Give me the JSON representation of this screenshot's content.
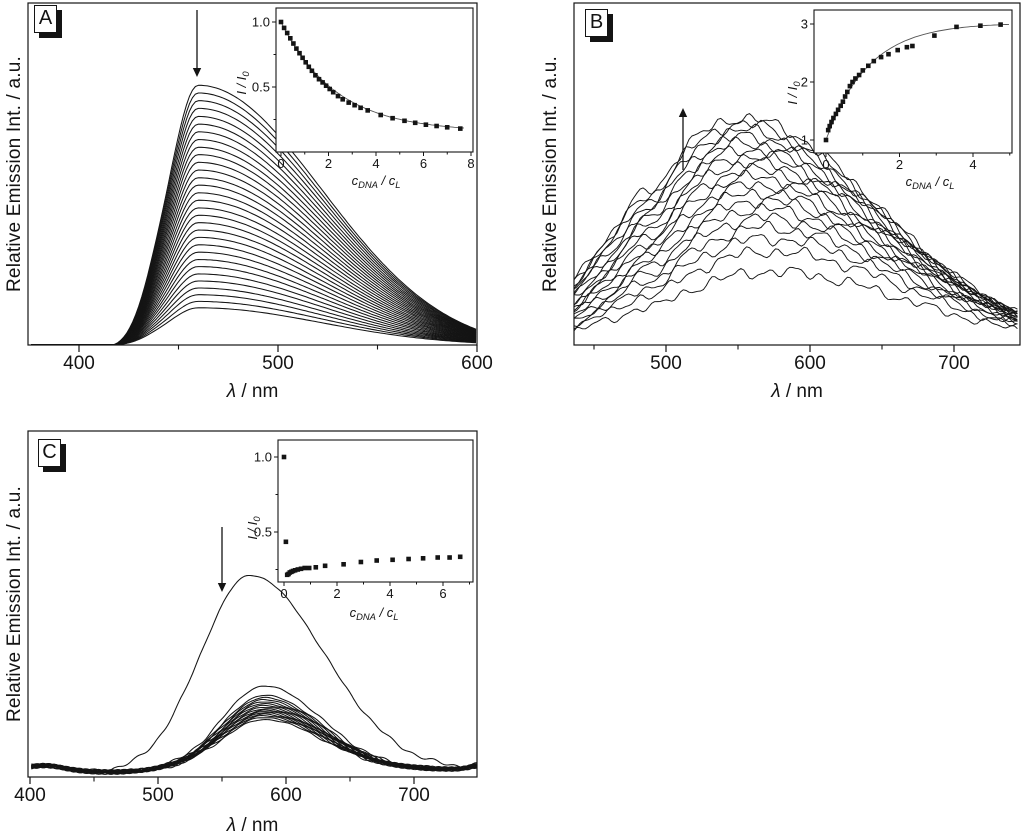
{
  "figure": {
    "background": "#ffffff",
    "ink": "#141414",
    "fit_line_color": "#555555"
  },
  "panels": [
    {
      "label": "A",
      "y_axis_label": "Relative Emission Int. / a.u.",
      "x_axis_label_prefix": "λ",
      "x_axis_label_suffix": " / nm"
    },
    {
      "label": "B",
      "y_axis_label": "Relative Emission Int. / a.u.",
      "x_axis_label_prefix": "λ",
      "x_axis_label_suffix": " / nm"
    },
    {
      "label": "C",
      "y_axis_label": "Relative Emission Int. / a.u.",
      "x_axis_label_prefix": "λ",
      "x_axis_label_suffix": " / nm"
    }
  ],
  "chart_data": [
    {
      "panel": "A",
      "type": "line-family",
      "xlabel": "λ / nm",
      "ylabel": "Relative Emission Int. / a.u.",
      "x_ticks": [
        400,
        500,
        600
      ],
      "x_minor_ticks": [
        450,
        550
      ],
      "x_range_nm": [
        376,
        600
      ],
      "arrow": {
        "direction": "down",
        "at_nm": 459
      },
      "emission_curves": {
        "n": 31,
        "trend": "decreasing",
        "peak_nm": 460,
        "sigma_left_nm": 15,
        "sigma_right_nm": 62,
        "shoulder_nm": 437,
        "shoulder_frac": 0.05,
        "baseline_shift": -0.02,
        "peak_heights_frac": [
          0.775,
          0.752,
          0.729,
          0.706,
          0.682,
          0.659,
          0.636,
          0.613,
          0.59,
          0.568,
          0.545,
          0.522,
          0.499,
          0.477,
          0.454,
          0.432,
          0.409,
          0.387,
          0.365,
          0.343,
          0.321,
          0.299,
          0.277,
          0.255,
          0.234,
          0.212,
          0.191,
          0.17,
          0.15,
          0.13,
          0.111
        ]
      },
      "inset": {
        "type": "scatter",
        "xlabel_segments": [
          {
            "t": "c",
            "italic": true
          },
          {
            "t": "DNA",
            "italic": true,
            "sub": true
          },
          {
            "t": " / ",
            "italic": true
          },
          {
            "t": "c",
            "italic": true
          },
          {
            "t": "L",
            "italic": true,
            "sub": true
          }
        ],
        "ylabel_segments": [
          {
            "t": "I / I",
            "italic": true
          },
          {
            "t": "0",
            "italic": true,
            "sub": true
          }
        ],
        "x_ticks": [
          0,
          2,
          4,
          6,
          8
        ],
        "x_minor_ticks": [
          1,
          3,
          5,
          7
        ],
        "y_ticks": [
          {
            "v": 0.5,
            "label": "0.5"
          },
          {
            "v": 1.0,
            "label": "1.0"
          }
        ],
        "y_minor_ticks": [
          0.25,
          0.75
        ],
        "x_range": [
          -0.2,
          8.1
        ],
        "y_range": [
          0.0,
          1.1
        ],
        "points": [
          [
            0.0,
            1.0
          ],
          [
            0.13,
            0.955
          ],
          [
            0.26,
            0.915
          ],
          [
            0.39,
            0.875
          ],
          [
            0.52,
            0.835
          ],
          [
            0.65,
            0.795
          ],
          [
            0.78,
            0.76
          ],
          [
            0.91,
            0.725
          ],
          [
            1.04,
            0.69
          ],
          [
            1.17,
            0.655
          ],
          [
            1.3,
            0.625
          ],
          [
            1.45,
            0.59
          ],
          [
            1.6,
            0.56
          ],
          [
            1.75,
            0.535
          ],
          [
            1.9,
            0.51
          ],
          [
            2.05,
            0.485
          ],
          [
            2.2,
            0.46
          ],
          [
            2.4,
            0.43
          ],
          [
            2.6,
            0.405
          ],
          [
            2.85,
            0.38
          ],
          [
            3.1,
            0.36
          ],
          [
            3.35,
            0.34
          ],
          [
            3.65,
            0.32
          ],
          [
            4.2,
            0.285
          ],
          [
            4.7,
            0.26
          ],
          [
            5.2,
            0.24
          ],
          [
            5.65,
            0.225
          ],
          [
            6.1,
            0.21
          ],
          [
            6.55,
            0.2
          ],
          [
            7.0,
            0.19
          ],
          [
            7.55,
            0.18
          ]
        ],
        "fit_line": true,
        "fit_params": {
          "type": "exp_decay",
          "y0": 0.155,
          "a": 0.845,
          "tau": 2.3,
          "x_from": 0.02,
          "x_to": 7.78
        }
      }
    },
    {
      "panel": "B",
      "type": "line-family",
      "xlabel": "λ / nm",
      "ylabel": "Relative Emission Int. / a.u.",
      "x_ticks": [
        500,
        600,
        700
      ],
      "x_minor_ticks": [
        450,
        550,
        650
      ],
      "x_range_nm": [
        436,
        745
      ],
      "arrow": {
        "direction": "up",
        "at_nm": 512
      },
      "emission_curves": {
        "n": 19,
        "trend": "increasing",
        "noisy": true,
        "sigma_left_nm": 72,
        "sigma_right_nm": 95,
        "floor_frac": 0.02,
        "bump_nm": 479,
        "notch_nm": 495,
        "peak_centers_nm": [
          552.0,
          552.6,
          553.4,
          554.3,
          555.3,
          556.3,
          557.4,
          558.4,
          559.6,
          560.7,
          561.9,
          563.1,
          564.3,
          565.5,
          566.8,
          568.1,
          569.4,
          570.7,
          572.0
        ],
        "peak_heights_frac": [
          0.65,
          0.633,
          0.615,
          0.597,
          0.579,
          0.56,
          0.541,
          0.522,
          0.502,
          0.481,
          0.459,
          0.437,
          0.414,
          0.39,
          0.364,
          0.336,
          0.305,
          0.268,
          0.21
        ]
      },
      "inset": {
        "type": "scatter",
        "xlabel_segments": [
          {
            "t": "c",
            "italic": true
          },
          {
            "t": "DNA",
            "italic": true,
            "sub": true
          },
          {
            "t": " / ",
            "italic": true
          },
          {
            "t": "c",
            "italic": true
          },
          {
            "t": "L",
            "italic": true,
            "sub": true
          }
        ],
        "ylabel_segments": [
          {
            "t": "I / I",
            "italic": true
          },
          {
            "t": "0",
            "italic": true,
            "sub": true
          }
        ],
        "x_ticks": [
          0,
          2,
          4
        ],
        "x_minor_ticks": [
          1,
          3,
          5
        ],
        "y_ticks": [
          {
            "v": 1,
            "label": "1"
          },
          {
            "v": 2,
            "label": "2"
          },
          {
            "v": 3,
            "label": "3"
          }
        ],
        "y_minor_ticks": [],
        "x_range": [
          -0.3,
          5.05
        ],
        "y_range": [
          0.78,
          3.25
        ],
        "points": [
          [
            0.0,
            1.0
          ],
          [
            0.06,
            1.17
          ],
          [
            0.1,
            1.24
          ],
          [
            0.15,
            1.31
          ],
          [
            0.2,
            1.38
          ],
          [
            0.27,
            1.45
          ],
          [
            0.33,
            1.52
          ],
          [
            0.4,
            1.59
          ],
          [
            0.46,
            1.66
          ],
          [
            0.52,
            1.75
          ],
          [
            0.58,
            1.83
          ],
          [
            0.65,
            1.93
          ],
          [
            0.72,
            2.0
          ],
          [
            0.8,
            2.06
          ],
          [
            0.9,
            2.12
          ],
          [
            1.0,
            2.2
          ],
          [
            1.15,
            2.28
          ],
          [
            1.3,
            2.36
          ],
          [
            1.5,
            2.43
          ],
          [
            1.7,
            2.48
          ],
          [
            1.95,
            2.55
          ],
          [
            2.2,
            2.6
          ],
          [
            2.35,
            2.62
          ],
          [
            2.95,
            2.8
          ],
          [
            3.55,
            2.95
          ],
          [
            4.2,
            2.97
          ],
          [
            4.75,
            2.99
          ]
        ],
        "fit_line": true,
        "fit_params": {
          "type": "exp_rise",
          "y0": 1.0,
          "a": 2.02,
          "tau": 1.15,
          "x_from": 0.02,
          "x_to": 5.0
        }
      }
    },
    {
      "panel": "C",
      "type": "line-family",
      "xlabel": "λ / nm",
      "ylabel": "Relative Emission Int. / a.u.",
      "x_ticks": [
        400,
        500,
        600,
        700
      ],
      "x_minor_ticks": [
        450,
        550,
        650
      ],
      "x_range_nm": [
        401,
        749
      ],
      "arrow": {
        "direction": "down",
        "at_nm": 550
      },
      "emission_curves": {
        "n": 17,
        "trend": "decreasing",
        "first_curve": {
          "peak_nm": 572,
          "sigma_left_nm": 38,
          "sigma_right_nm": 57
        },
        "rest_curves": {
          "peak_nm": 583,
          "sigma_left_nm": 33,
          "sigma_right_nm": 45
        },
        "baseline_frac": 0.022,
        "baseline_bump_nm": 412,
        "peak_heights_frac": [
          0.575,
          0.255,
          0.228,
          0.221,
          0.215,
          0.209,
          0.204,
          0.199,
          0.194,
          0.189,
          0.185,
          0.181,
          0.177,
          0.173,
          0.169,
          0.164,
          0.158
        ]
      },
      "inset": {
        "type": "scatter",
        "xlabel_segments": [
          {
            "t": "c",
            "italic": true
          },
          {
            "t": "DNA",
            "italic": true,
            "sub": true
          },
          {
            "t": " / ",
            "italic": true
          },
          {
            "t": "c",
            "italic": true
          },
          {
            "t": "L",
            "italic": true,
            "sub": true
          }
        ],
        "ylabel_segments": [
          {
            "t": "I / I",
            "italic": true
          },
          {
            "t": "0",
            "italic": true,
            "sub": true
          }
        ],
        "x_ticks": [
          0,
          2,
          4,
          6
        ],
        "x_minor_ticks": [
          1,
          3,
          5,
          7
        ],
        "y_ticks": [
          {
            "v": 0.5,
            "label": "0.5"
          },
          {
            "v": 1.0,
            "label": "1.0"
          }
        ],
        "y_minor_ticks": [
          0.25,
          0.75
        ],
        "x_range": [
          -0.25,
          7.1
        ],
        "y_range": [
          0.167,
          1.11
        ],
        "points": [
          [
            0.0,
            1.0
          ],
          [
            0.07,
            0.435
          ],
          [
            0.12,
            0.215
          ],
          [
            0.17,
            0.22
          ],
          [
            0.22,
            0.23
          ],
          [
            0.28,
            0.235
          ],
          [
            0.34,
            0.24
          ],
          [
            0.42,
            0.245
          ],
          [
            0.52,
            0.25
          ],
          [
            0.64,
            0.255
          ],
          [
            0.78,
            0.26
          ],
          [
            0.95,
            0.26
          ],
          [
            1.2,
            0.265
          ],
          [
            1.55,
            0.275
          ],
          [
            2.25,
            0.285
          ],
          [
            2.9,
            0.3
          ],
          [
            3.5,
            0.31
          ],
          [
            4.1,
            0.315
          ],
          [
            4.7,
            0.32
          ],
          [
            5.25,
            0.325
          ],
          [
            5.8,
            0.33
          ],
          [
            6.25,
            0.33
          ],
          [
            6.65,
            0.335
          ]
        ],
        "fit_line": false,
        "fit_params": null
      }
    }
  ]
}
